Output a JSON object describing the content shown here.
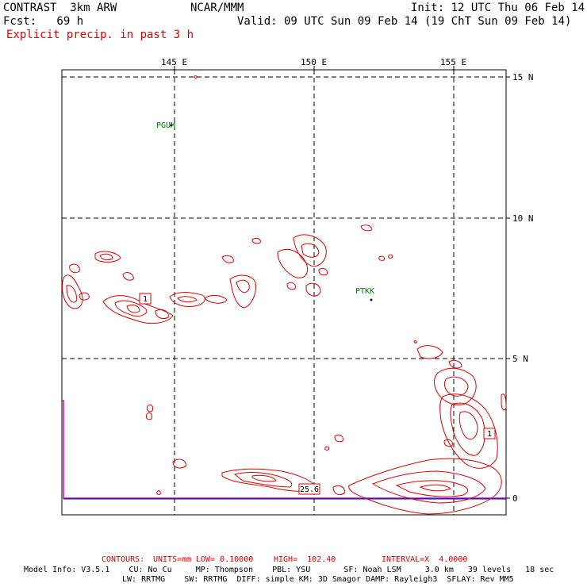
{
  "header": {
    "model": "CONTRAST  3km ARW",
    "center": "NCAR/MMM",
    "init": "Init: 12 UTC Thu 06 Feb 14",
    "fcst": "Fcst:   69 h",
    "valid": "Valid: 09 UTC Sun 09 Feb 14 (19 ChT Sun 09 Feb 14)",
    "field": "Explicit precip. in past 3 h"
  },
  "axes": {
    "lon_labels": [
      "145 E",
      "150 E",
      "155 E"
    ],
    "lat_labels": [
      "15 N",
      "10 N",
      "5 N",
      "0"
    ]
  },
  "stations": [
    "PGUM",
    "PTKK"
  ],
  "max_labels": [
    "1",
    "1",
    "25.6"
  ],
  "footer": {
    "contours": {
      "head": "CONTOURS:",
      "units": "UNITS=mm",
      "low": "LOW= 0.10000",
      "high": "HIGH=  102.40",
      "interval": "INTERVAL=X  4.0000"
    },
    "model_info_1": "Model Info: V3.5.1    CU: No Cu     MP: Thompson    PBL: YSU       SF: Noah LSM     3.0 km   39 levels   18 sec",
    "model_info_2": "LW: RRTMG    SW: RRTMG  DIFF: simple KM: 3D Smagor DAMP: Rayleigh3  SFLAY: Rev MM5"
  },
  "colors": {
    "precip": "#e00000",
    "station": "#007a00",
    "boundary": "#cc00cc",
    "grid": "#000000"
  }
}
